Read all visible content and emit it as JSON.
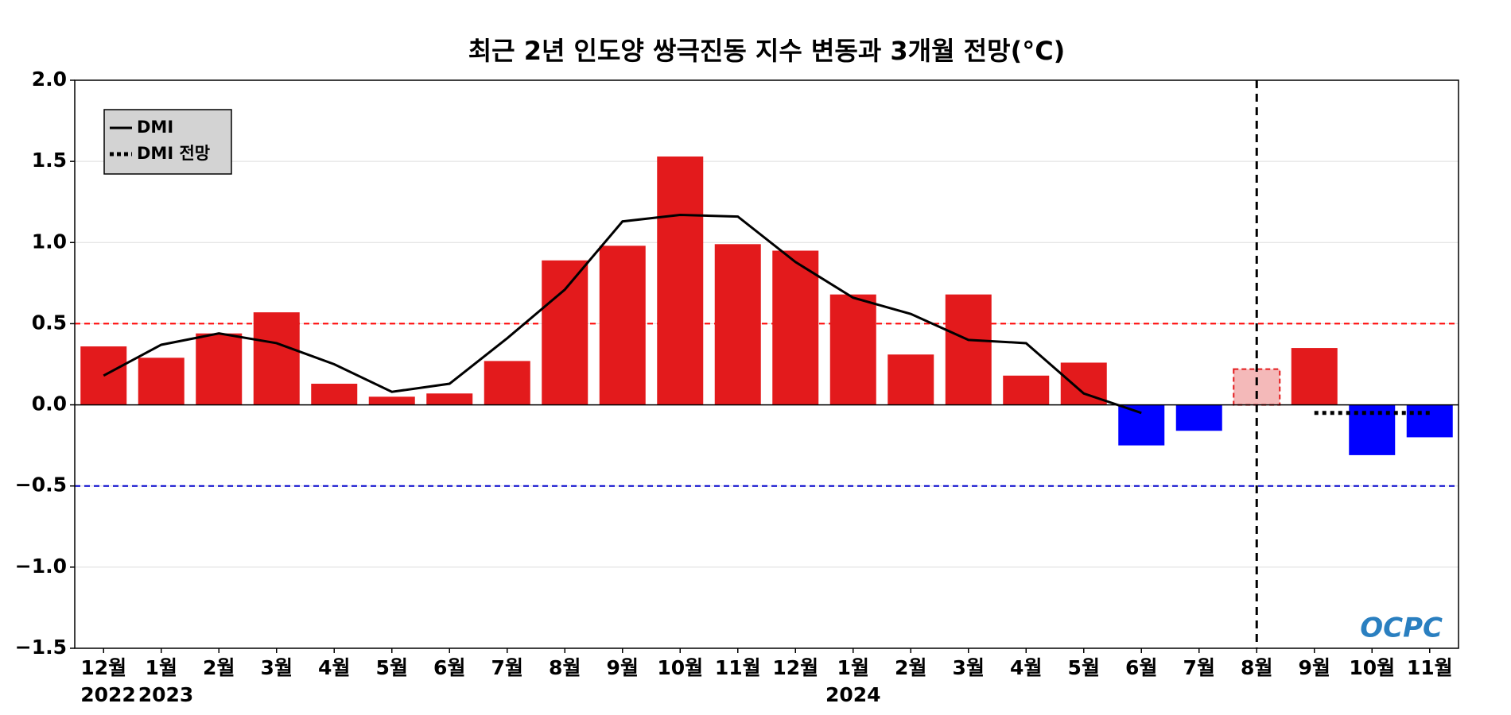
{
  "chart_data": {
    "type": "bar",
    "title": "최근 2년 인도양 쌍극진동 지수 변동과 3개월 전망(°C)",
    "categories": [
      "12월",
      "1월",
      "2월",
      "3월",
      "4월",
      "5월",
      "6월",
      "7월",
      "8월",
      "9월",
      "10월",
      "11월",
      "12월",
      "1월",
      "2월",
      "3월",
      "4월",
      "5월",
      "6월",
      "7월",
      "8월",
      "9월",
      "10월",
      "11월"
    ],
    "category_years": [
      "2022",
      "2023",
      null,
      null,
      null,
      null,
      null,
      null,
      null,
      null,
      null,
      null,
      null,
      "2024",
      null,
      null,
      null,
      null,
      null,
      null,
      null,
      null,
      null,
      null
    ],
    "values": [
      0.36,
      0.29,
      0.44,
      0.57,
      0.13,
      0.05,
      0.07,
      0.27,
      0.89,
      0.98,
      1.53,
      0.99,
      0.95,
      0.68,
      0.31,
      0.68,
      0.18,
      0.26,
      -0.25,
      -0.16,
      0.22,
      0.35,
      -0.31,
      -0.2
    ],
    "bar_colors": [
      "#e31a1c",
      "#e31a1c",
      "#e31a1c",
      "#e31a1c",
      "#e31a1c",
      "#e31a1c",
      "#e31a1c",
      "#e31a1c",
      "#e31a1c",
      "#e31a1c",
      "#e31a1c",
      "#e31a1c",
      "#e31a1c",
      "#e31a1c",
      "#e31a1c",
      "#e31a1c",
      "#e31a1c",
      "#e31a1c",
      "#0000ff",
      "#0000ff",
      "#f4b9b9",
      "#e31a1c",
      "#0000ff",
      "#0000ff"
    ],
    "series": [
      {
        "name": "DMI",
        "color": "#000000",
        "style": "solid",
        "values": [
          0.18,
          0.37,
          0.44,
          0.38,
          0.25,
          0.08,
          0.13,
          0.41,
          0.71,
          1.13,
          1.17,
          1.16,
          0.88,
          0.66,
          0.56,
          0.4,
          0.38,
          0.07,
          -0.05,
          null,
          null,
          null,
          null,
          null
        ]
      },
      {
        "name": "DMI 전망",
        "color": "#000000",
        "style": "dotted",
        "values": [
          null,
          null,
          null,
          null,
          null,
          null,
          null,
          null,
          null,
          null,
          null,
          null,
          null,
          null,
          null,
          null,
          null,
          null,
          null,
          null,
          null,
          -0.05,
          -0.05,
          -0.05
        ]
      }
    ],
    "reference_lines": [
      {
        "value": 0.5,
        "color": "#ff0000"
      },
      {
        "value": -0.5,
        "color": "#0000cc"
      }
    ],
    "forecast_index": 20,
    "ylim": [
      -1.5,
      2.0
    ],
    "yticks": [
      {
        "value": -1.5,
        "label": "−1.5"
      },
      {
        "value": -1.0,
        "label": "−1.0"
      },
      {
        "value": -0.5,
        "label": "−0.5"
      },
      {
        "value": 0,
        "label": "0.0"
      },
      {
        "value": 0.5,
        "label": "0.5"
      },
      {
        "value": 1.0,
        "label": "1.0"
      },
      {
        "value": 1.5,
        "label": "1.5"
      },
      {
        "value": 2.0,
        "label": "2.0"
      }
    ],
    "grid": true,
    "legend": "upper left",
    "logo": "OCPC"
  }
}
